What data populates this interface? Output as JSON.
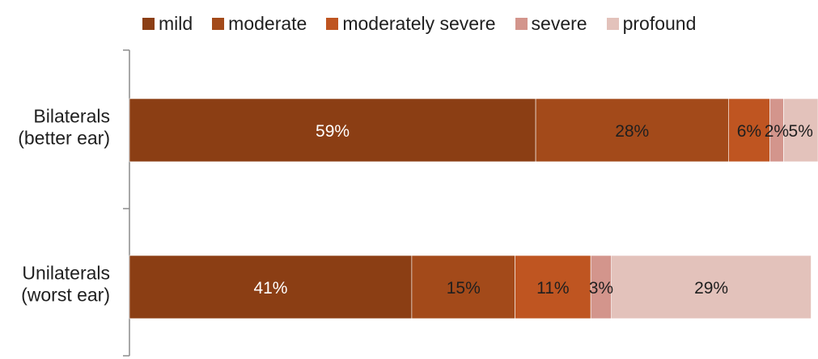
{
  "chart_data": {
    "type": "bar",
    "orientation": "horizontal",
    "stacked": true,
    "percent_stacked": true,
    "categories": [
      "Bilaterals\n(better ear)",
      "Unilaterals\n(worst ear)"
    ],
    "series": [
      {
        "name": "mild",
        "color": "#8B3E14",
        "values": [
          59,
          41
        ],
        "labels": [
          "59%",
          "41%"
        ]
      },
      {
        "name": "moderate",
        "color": "#A34A1A",
        "values": [
          28,
          15
        ],
        "labels": [
          "28%",
          "15%"
        ]
      },
      {
        "name": "moderately severe",
        "color": "#BF5521",
        "values": [
          6,
          11
        ],
        "labels": [
          "6%",
          "11%"
        ]
      },
      {
        "name": "severe",
        "color": "#D3958C",
        "values": [
          2,
          3
        ],
        "labels": [
          "2%",
          "3%"
        ]
      },
      {
        "name": "profound",
        "color": "#E3C2BB",
        "values": [
          5,
          29
        ],
        "labels": [
          "5%",
          "29%"
        ]
      }
    ],
    "xlim": [
      0,
      100
    ],
    "grid": false,
    "legend_position": "top"
  }
}
